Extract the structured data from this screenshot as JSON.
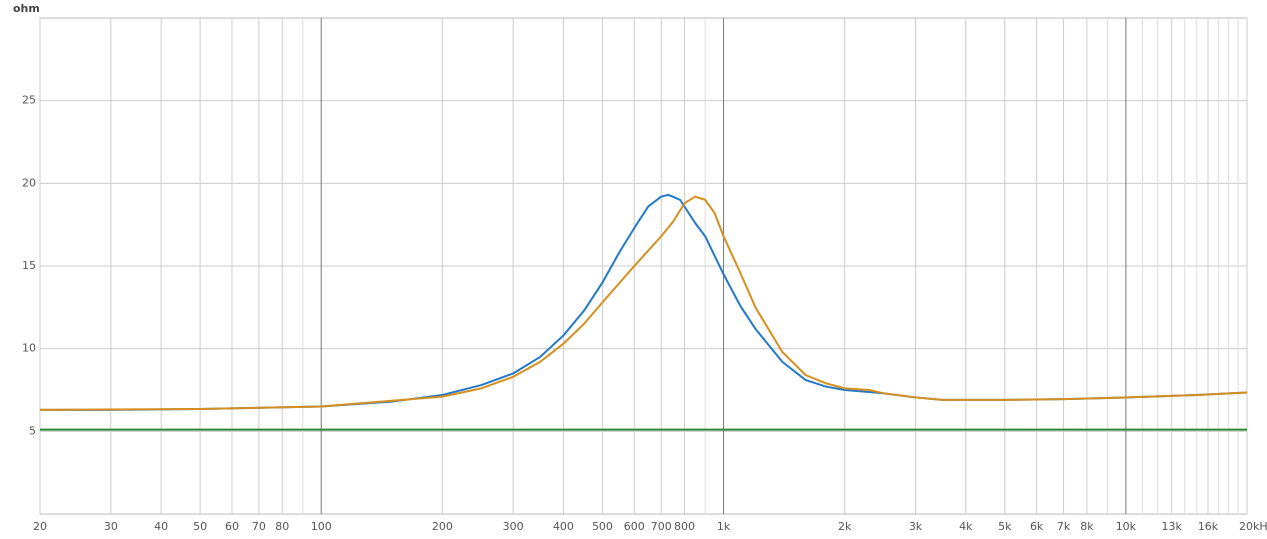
{
  "chart_data": {
    "type": "line",
    "y_label": "ohm",
    "xscale": "log",
    "grid": true,
    "xlim": [
      20,
      20000
    ],
    "ylim": [
      0,
      30
    ],
    "yticks": [
      5,
      10,
      15,
      20,
      25
    ],
    "xticks": [
      20,
      30,
      40,
      50,
      60,
      70,
      80,
      100,
      200,
      300,
      400,
      500,
      600,
      700,
      800,
      {
        "value": 1000,
        "label": "1k"
      },
      {
        "value": 2000,
        "label": "2k"
      },
      {
        "value": 3000,
        "label": "3k"
      },
      {
        "value": 4000,
        "label": "4k"
      },
      {
        "value": 5000,
        "label": "5k"
      },
      {
        "value": 6000,
        "label": "6k"
      },
      {
        "value": 7000,
        "label": "7k"
      },
      {
        "value": 8000,
        "label": "8k"
      },
      {
        "value": 10000,
        "label": "10k"
      },
      {
        "value": 13000,
        "label": "13k"
      },
      {
        "value": 16000,
        "label": "16k"
      },
      {
        "value": 20000,
        "label": "20kHz"
      }
    ],
    "xminor": [
      90,
      900,
      9000,
      11000,
      12000,
      14000,
      15000,
      17000,
      18000,
      19000
    ],
    "series": [
      {
        "color": "#2279c9",
        "x": [
          20,
          30,
          50,
          100,
          150,
          200,
          250,
          300,
          350,
          400,
          450,
          500,
          550,
          600,
          650,
          700,
          730,
          780,
          850,
          900,
          1000,
          1100,
          1200,
          1400,
          1600,
          1800,
          2000,
          2500,
          3000,
          3500,
          4000,
          5000,
          7000,
          10000,
          15000,
          20000
        ],
        "values": [
          6.3,
          6.3,
          6.35,
          6.5,
          6.8,
          7.2,
          7.8,
          8.5,
          9.5,
          10.8,
          12.3,
          14.0,
          15.8,
          17.3,
          18.6,
          19.2,
          19.3,
          19.0,
          17.6,
          16.8,
          14.5,
          12.6,
          11.2,
          9.2,
          8.1,
          7.7,
          7.5,
          7.3,
          7.05,
          6.9,
          6.9,
          6.9,
          6.95,
          7.05,
          7.2,
          7.35
        ]
      },
      {
        "color": "#d68e1e",
        "x": [
          20,
          50,
          100,
          200,
          250,
          300,
          350,
          400,
          450,
          500,
          600,
          700,
          750,
          800,
          850,
          900,
          950,
          1000,
          1100,
          1200,
          1400,
          1600,
          1800,
          2000,
          2300,
          2500,
          3000,
          3500,
          4000,
          5000,
          7000,
          10000,
          15000,
          20000
        ],
        "values": [
          6.3,
          6.35,
          6.5,
          7.1,
          7.6,
          8.3,
          9.2,
          10.3,
          11.5,
          12.8,
          15.0,
          16.8,
          17.7,
          18.8,
          19.2,
          19.0,
          18.2,
          16.8,
          14.6,
          12.5,
          9.8,
          8.4,
          7.9,
          7.6,
          7.5,
          7.3,
          7.05,
          6.9,
          6.9,
          6.9,
          6.95,
          7.05,
          7.2,
          7.35
        ]
      },
      {
        "color": "#2a8a32",
        "x": [
          20,
          20000
        ],
        "values": [
          5.1,
          5.1
        ]
      }
    ]
  }
}
